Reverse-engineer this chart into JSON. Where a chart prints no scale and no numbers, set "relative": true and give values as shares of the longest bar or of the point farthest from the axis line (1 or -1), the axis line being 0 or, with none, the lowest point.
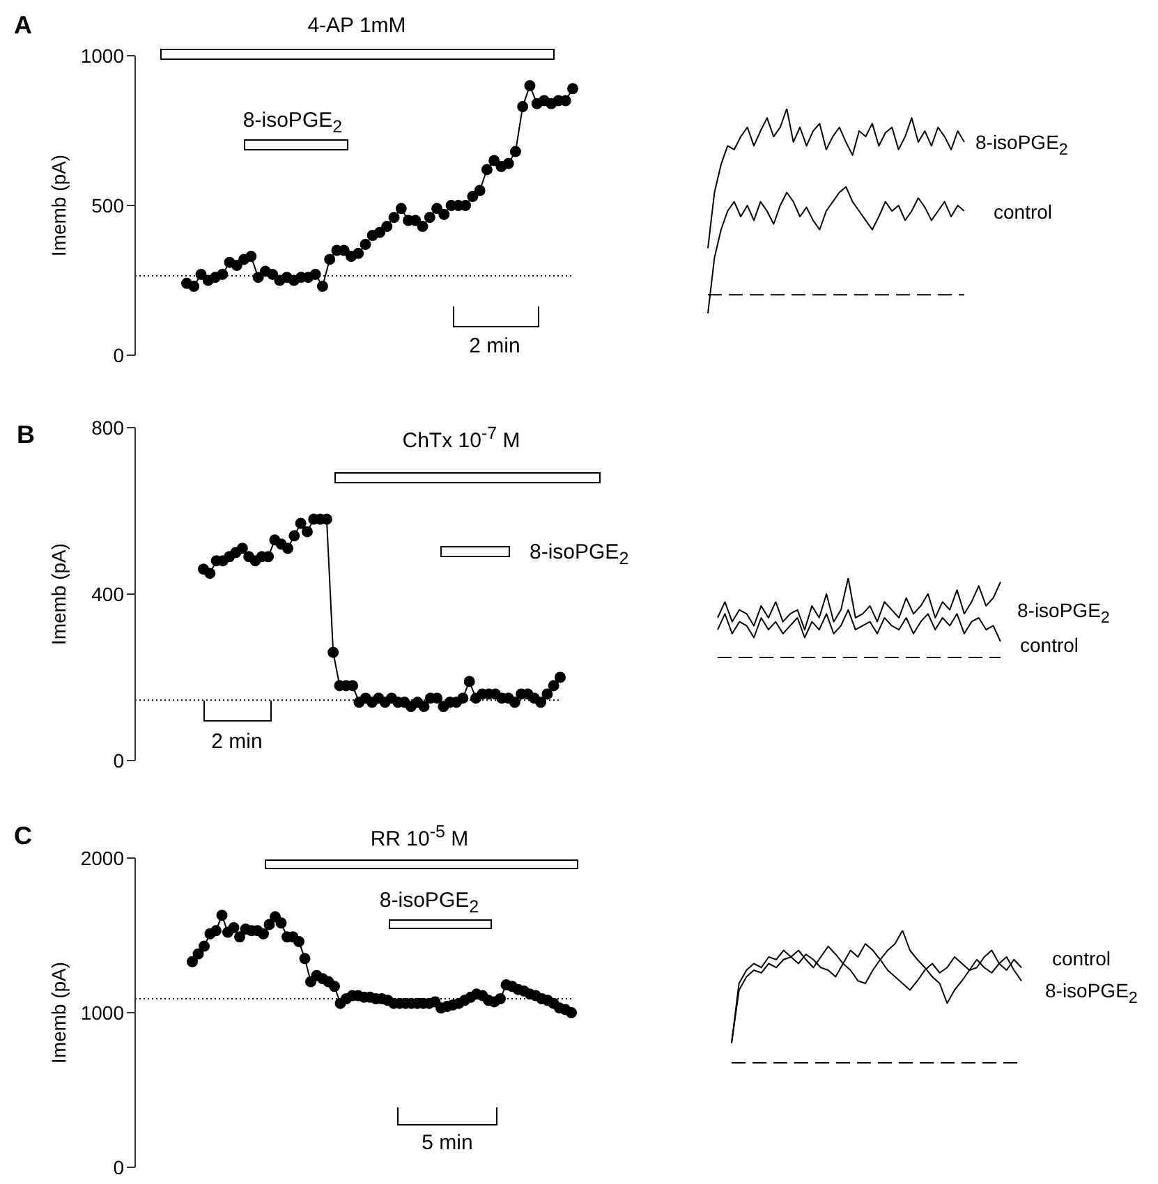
{
  "chart_data": [
    {
      "type": "line",
      "title": "A",
      "ylabel": "Imemb (pA)",
      "categories": [
        null,
        null,
        null,
        null,
        null,
        null,
        null,
        null,
        null,
        null,
        null,
        null,
        null,
        null,
        null,
        null,
        null,
        null,
        null,
        null,
        null,
        null,
        null,
        null,
        null,
        null,
        null,
        null,
        null,
        null,
        null,
        null,
        null,
        null,
        null,
        null,
        null,
        null,
        null,
        null,
        null,
        null,
        null,
        null,
        null,
        null,
        null,
        null,
        null,
        null,
        null,
        null,
        null,
        null,
        null
      ],
      "values": [
        240,
        230,
        270,
        250,
        260,
        270,
        310,
        300,
        320,
        330,
        260,
        280,
        270,
        250,
        260,
        250,
        260,
        260,
        270,
        230,
        320,
        350,
        350,
        330,
        340,
        370,
        400,
        410,
        430,
        460,
        490,
        450,
        450,
        430,
        460,
        490,
        470,
        500,
        500,
        500,
        530,
        550,
        620,
        650,
        630,
        640,
        680,
        830,
        900,
        840,
        850,
        840,
        850,
        850,
        890
      ],
      "color": "#000000",
      "marker": "circle",
      "ylim": [
        0,
        1000
      ],
      "yticks": [
        0,
        500,
        1000
      ],
      "tick_labels": "y",
      "ref_lines": [
        {
          "axis": "y",
          "value": 265,
          "line_style": "dotted"
        }
      ],
      "annotations": [
        "4-AP 1mM",
        "8-isoPGE$_{2}$",
        "2 min"
      ]
    },
    {
      "type": "line",
      "relative": true,
      "tick_labels": false,
      "categories": [
        null,
        null,
        null,
        null,
        null,
        null,
        null,
        null,
        null,
        null,
        null,
        null,
        null,
        null,
        null,
        null,
        null,
        null,
        null,
        null,
        null,
        null,
        null,
        null,
        null,
        null,
        null,
        null,
        null,
        null,
        null,
        null,
        null,
        null,
        null,
        null,
        null,
        null,
        null,
        null
      ],
      "series": [
        {
          "name": "8-isoPGE$_{2}$",
          "color": "#000000",
          "values": [
            0.25,
            0.55,
            0.7,
            0.8,
            0.78,
            0.85,
            0.9,
            0.8,
            0.88,
            0.95,
            0.85,
            0.9,
            1.0,
            0.82,
            0.9,
            0.8,
            0.88,
            0.92,
            0.78,
            0.85,
            0.9,
            0.82,
            0.75,
            0.88,
            0.85,
            0.92,
            0.8,
            0.87,
            0.9,
            0.78,
            0.85,
            0.95,
            0.82,
            0.88,
            0.8,
            0.9,
            0.85,
            0.78,
            0.88,
            0.82
          ]
        },
        {
          "name": "control",
          "color": "#000000",
          "values": [
            -0.1,
            0.2,
            0.35,
            0.45,
            0.5,
            0.42,
            0.48,
            0.4,
            0.5,
            0.45,
            0.38,
            0.48,
            0.55,
            0.5,
            0.42,
            0.47,
            0.4,
            0.35,
            0.45,
            0.5,
            0.55,
            0.58,
            0.5,
            0.45,
            0.4,
            0.35,
            0.42,
            0.5,
            0.45,
            0.48,
            0.4,
            0.45,
            0.52,
            0.47,
            0.4,
            0.45,
            0.5,
            0.42,
            0.48,
            0.45
          ]
        }
      ],
      "ref_lines": [
        {
          "axis": "y",
          "value": 0,
          "line_style": "dashed"
        }
      ]
    },
    {
      "type": "line",
      "title": "B",
      "ylabel": "Imemb (pA)",
      "categories": [
        null,
        null,
        null,
        null,
        null,
        null,
        null,
        null,
        null,
        null,
        null,
        null,
        null,
        null,
        null,
        null,
        null,
        null,
        null,
        null,
        null,
        null,
        null,
        null,
        null,
        null,
        null,
        null,
        null,
        null,
        null,
        null,
        null,
        null,
        null,
        null,
        null,
        null,
        null,
        null,
        null,
        null,
        null,
        null,
        null,
        null,
        null,
        null,
        null,
        null,
        null,
        null,
        null,
        null,
        null,
        null
      ],
      "values": [
        460,
        450,
        480,
        480,
        490,
        500,
        510,
        490,
        480,
        490,
        490,
        530,
        520,
        510,
        540,
        570,
        550,
        580,
        580,
        580,
        260,
        180,
        180,
        180,
        140,
        150,
        140,
        150,
        140,
        150,
        140,
        140,
        130,
        140,
        130,
        150,
        150,
        130,
        140,
        140,
        150,
        190,
        150,
        160,
        160,
        160,
        150,
        150,
        140,
        160,
        160,
        150,
        140,
        160,
        180,
        200
      ],
      "color": "#000000",
      "marker": "circle",
      "ylim": [
        0,
        800
      ],
      "yticks": [
        0,
        400,
        800
      ],
      "tick_labels": "y",
      "ref_lines": [
        {
          "axis": "y",
          "value": 145,
          "line_style": "dotted"
        }
      ],
      "annotations": [
        "ChTx 10$^{-7}$ M",
        "8-isoPGE$_{2}$",
        "2 min"
      ]
    },
    {
      "type": "line",
      "relative": true,
      "tick_labels": false,
      "categories": [
        null,
        null,
        null,
        null,
        null,
        null,
        null,
        null,
        null,
        null,
        null,
        null,
        null,
        null,
        null,
        null,
        null,
        null,
        null,
        null,
        null,
        null,
        null,
        null,
        null,
        null,
        null,
        null,
        null,
        null,
        null,
        null,
        null,
        null,
        null,
        null,
        null,
        null,
        null,
        null
      ],
      "series": [
        {
          "name": "8-isoPGE$_{2}$",
          "color": "#000000",
          "values": [
            0.5,
            0.7,
            0.45,
            0.6,
            0.55,
            0.4,
            0.65,
            0.5,
            0.7,
            0.45,
            0.55,
            0.6,
            0.35,
            0.65,
            0.5,
            0.8,
            0.45,
            0.6,
            1.0,
            0.5,
            0.55,
            0.65,
            0.45,
            0.7,
            0.6,
            0.5,
            0.75,
            0.55,
            0.65,
            0.8,
            0.5,
            0.7,
            0.6,
            0.85,
            0.55,
            0.7,
            0.9,
            0.65,
            0.75,
            0.95
          ]
        },
        {
          "name": "control",
          "color": "#000000",
          "values": [
            0.35,
            0.55,
            0.3,
            0.45,
            0.4,
            0.25,
            0.5,
            0.35,
            0.45,
            0.3,
            0.4,
            0.5,
            0.25,
            0.45,
            0.35,
            0.55,
            0.3,
            0.4,
            0.6,
            0.35,
            0.4,
            0.45,
            0.3,
            0.5,
            0.4,
            0.35,
            0.5,
            0.3,
            0.45,
            0.55,
            0.35,
            0.5,
            0.4,
            0.55,
            0.3,
            0.45,
            0.5,
            0.35,
            0.4,
            0.2
          ]
        }
      ],
      "ref_lines": [
        {
          "axis": "y",
          "value": 0,
          "line_style": "dashed"
        }
      ]
    },
    {
      "type": "line",
      "title": "C",
      "ylabel": "Imemb (pA)",
      "categories": [
        null,
        null,
        null,
        null,
        null,
        null,
        null,
        null,
        null,
        null,
        null,
        null,
        null,
        null,
        null,
        null,
        null,
        null,
        null,
        null,
        null,
        null,
        null,
        null,
        null,
        null,
        null,
        null,
        null,
        null,
        null,
        null,
        null,
        null,
        null,
        null,
        null,
        null,
        null,
        null,
        null,
        null,
        null,
        null,
        null,
        null,
        null,
        null,
        null,
        null,
        null,
        null,
        null,
        null,
        null,
        null,
        null,
        null,
        null,
        null,
        null,
        null,
        null,
        null,
        null
      ],
      "values": [
        1330,
        1380,
        1430,
        1510,
        1530,
        1630,
        1520,
        1550,
        1490,
        1540,
        1530,
        1530,
        1510,
        1570,
        1620,
        1580,
        1490,
        1490,
        1460,
        1350,
        1200,
        1240,
        1220,
        1200,
        1170,
        1060,
        1090,
        1110,
        1110,
        1100,
        1100,
        1090,
        1090,
        1080,
        1060,
        1060,
        1060,
        1060,
        1060,
        1060,
        1060,
        1070,
        1030,
        1040,
        1050,
        1060,
        1080,
        1100,
        1120,
        1110,
        1080,
        1070,
        1090,
        1180,
        1170,
        1150,
        1140,
        1120,
        1110,
        1090,
        1080,
        1060,
        1030,
        1020,
        1000
      ],
      "color": "#000000",
      "marker": "circle",
      "ylim": [
        0,
        2000
      ],
      "yticks": [
        0,
        1000,
        2000
      ],
      "tick_labels": "y",
      "ref_lines": [
        {
          "axis": "y",
          "value": 1090,
          "line_style": "dotted"
        }
      ],
      "annotations": [
        "RR 10$^{-5}$ M",
        "8-isoPGE$_{2}$",
        "5 min"
      ]
    },
    {
      "type": "line",
      "relative": true,
      "tick_labels": false,
      "categories": [
        null,
        null,
        null,
        null,
        null,
        null,
        null,
        null,
        null,
        null,
        null,
        null,
        null,
        null,
        null,
        null,
        null,
        null,
        null,
        null,
        null,
        null,
        null,
        null,
        null,
        null,
        null,
        null,
        null,
        null,
        null,
        null,
        null,
        null,
        null,
        null,
        null,
        null,
        null,
        null
      ],
      "series": [
        {
          "name": "control",
          "color": "#000000",
          "values": [
            0.15,
            0.6,
            0.7,
            0.75,
            0.72,
            0.8,
            0.78,
            0.85,
            0.8,
            0.75,
            0.82,
            0.78,
            0.72,
            0.7,
            0.65,
            0.75,
            0.85,
            0.8,
            0.9,
            0.85,
            0.78,
            0.7,
            0.65,
            0.6,
            0.55,
            0.62,
            0.7,
            0.75,
            0.68,
            0.72,
            0.8,
            0.75,
            0.7,
            0.72,
            0.8,
            0.85,
            0.75,
            0.7,
            0.78,
            0.72
          ]
        },
        {
          "name": "8-isoPGE$_{2}$",
          "color": "#000000",
          "values": [
            0.15,
            0.55,
            0.65,
            0.7,
            0.68,
            0.75,
            0.72,
            0.78,
            0.8,
            0.85,
            0.78,
            0.72,
            0.8,
            0.88,
            0.82,
            0.75,
            0.7,
            0.62,
            0.6,
            0.7,
            0.78,
            0.85,
            0.9,
            1.0,
            0.85,
            0.78,
            0.72,
            0.65,
            0.6,
            0.45,
            0.55,
            0.62,
            0.7,
            0.78,
            0.72,
            0.68,
            0.75,
            0.8,
            0.7,
            0.62
          ]
        }
      ],
      "ref_lines": [
        {
          "axis": "y",
          "value": 0,
          "line_style": "dashed"
        }
      ]
    }
  ]
}
